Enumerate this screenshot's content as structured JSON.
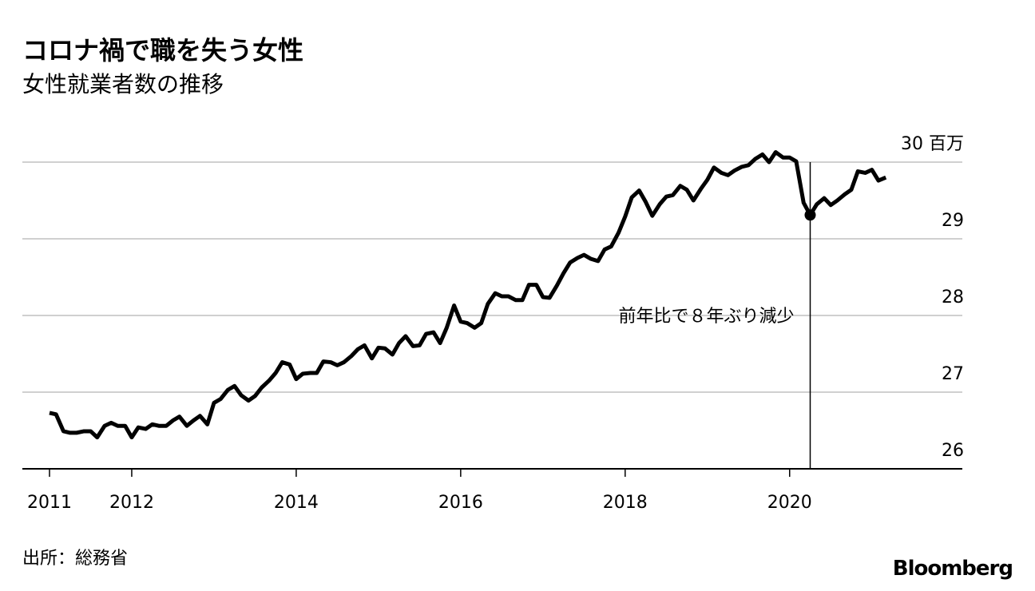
{
  "chart_data": {
    "type": "line",
    "title": "コロナ禍で職を失う女性",
    "subtitle": "女性就業者数の推移",
    "source": "出所：総務省",
    "brand": "Bloomberg",
    "annotation": {
      "text": "前年比で８年ぶり減少",
      "x": 2020.25
    },
    "highlight_index": 111,
    "xlim": [
      2010.67,
      2022.1
    ],
    "xticks": [
      2011,
      2012,
      2014,
      2016,
      2018,
      2020
    ],
    "ylim": [
      26,
      30.2
    ],
    "yticks": [
      26,
      27,
      28,
      29,
      {
        "value": 30,
        "label": "30 百万"
      }
    ],
    "grid": true,
    "x": [
      2011.0,
      2011.08,
      2011.17,
      2011.25,
      2011.33,
      2011.42,
      2011.5,
      2011.58,
      2011.67,
      2011.75,
      2011.83,
      2011.92,
      2012.0,
      2012.08,
      2012.17,
      2012.25,
      2012.33,
      2012.42,
      2012.5,
      2012.58,
      2012.67,
      2012.75,
      2012.83,
      2012.92,
      2013.0,
      2013.08,
      2013.17,
      2013.25,
      2013.33,
      2013.42,
      2013.5,
      2013.58,
      2013.67,
      2013.75,
      2013.83,
      2013.92,
      2014.0,
      2014.08,
      2014.17,
      2014.25,
      2014.33,
      2014.42,
      2014.5,
      2014.58,
      2014.67,
      2014.75,
      2014.83,
      2014.92,
      2015.0,
      2015.08,
      2015.17,
      2015.25,
      2015.33,
      2015.42,
      2015.5,
      2015.58,
      2015.67,
      2015.75,
      2015.83,
      2015.92,
      2016.0,
      2016.08,
      2016.17,
      2016.25,
      2016.33,
      2016.42,
      2016.5,
      2016.58,
      2016.67,
      2016.75,
      2016.83,
      2016.92,
      2017.0,
      2017.08,
      2017.17,
      2017.25,
      2017.33,
      2017.42,
      2017.5,
      2017.58,
      2017.67,
      2017.75,
      2017.83,
      2017.92,
      2018.0,
      2018.08,
      2018.17,
      2018.25,
      2018.33,
      2018.42,
      2018.5,
      2018.58,
      2018.67,
      2018.75,
      2018.83,
      2018.92,
      2019.0,
      2019.08,
      2019.17,
      2019.25,
      2019.33,
      2019.42,
      2019.5,
      2019.58,
      2019.67,
      2019.75,
      2019.83,
      2019.92,
      2020.0,
      2020.08,
      2020.17,
      2020.25,
      2020.33,
      2020.42,
      2020.5,
      2020.58,
      2020.67,
      2020.75,
      2020.83,
      2020.92,
      2021.0,
      2021.08,
      2021.17
    ],
    "series": [
      {
        "color": "#000000",
        "values": [
          26.73,
          26.71,
          26.49,
          26.47,
          26.47,
          26.49,
          26.49,
          26.41,
          26.56,
          26.6,
          26.56,
          26.56,
          26.41,
          26.54,
          26.52,
          26.58,
          26.56,
          26.56,
          26.63,
          26.68,
          26.56,
          26.63,
          26.69,
          26.58,
          26.86,
          26.91,
          27.03,
          27.08,
          26.96,
          26.89,
          26.95,
          27.06,
          27.15,
          27.25,
          27.39,
          27.36,
          27.17,
          27.24,
          27.25,
          27.25,
          27.4,
          27.39,
          27.35,
          27.39,
          27.47,
          27.56,
          27.61,
          27.44,
          27.58,
          27.57,
          27.49,
          27.64,
          27.73,
          27.6,
          27.61,
          27.76,
          27.78,
          27.64,
          27.84,
          28.13,
          27.92,
          27.9,
          27.84,
          27.9,
          28.15,
          28.29,
          28.25,
          28.25,
          28.2,
          28.2,
          28.4,
          28.4,
          28.24,
          28.23,
          28.39,
          28.55,
          28.69,
          28.75,
          28.79,
          28.74,
          28.71,
          28.86,
          28.9,
          29.08,
          29.29,
          29.54,
          29.63,
          29.48,
          29.3,
          29.45,
          29.55,
          29.57,
          29.69,
          29.64,
          29.5,
          29.65,
          29.77,
          29.93,
          29.86,
          29.83,
          29.89,
          29.94,
          29.96,
          30.04,
          30.1,
          30.0,
          30.13,
          30.06,
          30.06,
          30.01,
          29.47,
          29.31,
          29.45,
          29.53,
          29.44,
          29.5,
          29.58,
          29.64,
          29.88,
          29.86,
          29.9,
          29.76,
          29.8
        ]
      }
    ]
  }
}
